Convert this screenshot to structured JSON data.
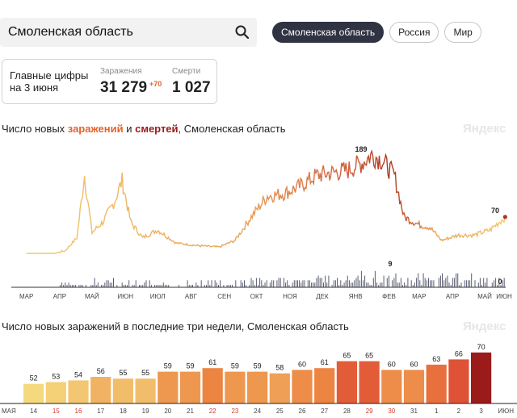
{
  "search": {
    "query": "Смоленская область",
    "icon": "search-icon"
  },
  "region_tabs": [
    {
      "label": "Смоленская область",
      "active": true
    },
    {
      "label": "Россия",
      "active": false
    },
    {
      "label": "Мир",
      "active": false
    }
  ],
  "summary": {
    "label_line1": "Главные цифры",
    "label_line2": "на 3 июня",
    "cases_caption": "Заражения",
    "cases_value": "31 279",
    "cases_delta": "+70",
    "deaths_caption": "Смерти",
    "deaths_value": "1 027"
  },
  "brand": {
    "logo_text": "Яндекс"
  },
  "colors": {
    "accent_orange": "#e4622c",
    "deaths_dark": "#9b1a1a",
    "line_start": "#f2c96b",
    "line_peak": "#a8361f",
    "bars_gray": "#5a5d72"
  },
  "chart_data": [
    {
      "type": "line",
      "title_parts": [
        "Число новых ",
        "заражений",
        " и ",
        "смертей",
        ", Смоленская область"
      ],
      "x_ticks": [
        "МАР",
        "АПР",
        "МАЙ",
        "ИЮН",
        "ИЮЛ",
        "АВГ",
        "СЕН",
        "ОКТ",
        "НОЯ",
        "ДЕК",
        "ЯНВ",
        "ФЕВ",
        "МАР",
        "АПР",
        "МАЙ",
        "ИЮН"
      ],
      "annotations": {
        "peak_cases": "189",
        "last_cases": "70",
        "peak_deaths": "9",
        "last_deaths": "0"
      },
      "cases_keypoints": [
        [
          "2020-03-15",
          0
        ],
        [
          "2020-04-10",
          0
        ],
        [
          "2020-04-20",
          5
        ],
        [
          "2020-05-01",
          30
        ],
        [
          "2020-05-08",
          150
        ],
        [
          "2020-05-15",
          40
        ],
        [
          "2020-05-25",
          60
        ],
        [
          "2020-06-05",
          100
        ],
        [
          "2020-06-12",
          140
        ],
        [
          "2020-06-20",
          60
        ],
        [
          "2020-07-01",
          30
        ],
        [
          "2020-07-15",
          45
        ],
        [
          "2020-08-01",
          20
        ],
        [
          "2020-08-20",
          15
        ],
        [
          "2020-09-10",
          12
        ],
        [
          "2020-09-25",
          25
        ],
        [
          "2020-10-10",
          70
        ],
        [
          "2020-10-25",
          110
        ],
        [
          "2020-11-10",
          115
        ],
        [
          "2020-11-25",
          130
        ],
        [
          "2020-12-10",
          150
        ],
        [
          "2020-12-25",
          155
        ],
        [
          "2021-01-08",
          160
        ],
        [
          "2021-01-22",
          175
        ],
        [
          "2021-01-30",
          189
        ],
        [
          "2021-02-08",
          180
        ],
        [
          "2021-02-20",
          150
        ],
        [
          "2021-03-01",
          70
        ],
        [
          "2021-03-15",
          55
        ],
        [
          "2021-03-25",
          50
        ],
        [
          "2021-04-05",
          25
        ],
        [
          "2021-04-20",
          35
        ],
        [
          "2021-05-05",
          35
        ],
        [
          "2021-05-20",
          45
        ],
        [
          "2021-06-03",
          70
        ]
      ],
      "deaths_bars_range": {
        "start": "2020-04-15",
        "end": "2021-06-03",
        "max": 9
      }
    },
    {
      "type": "bar",
      "title": "Число новых заражений в последние три недели, Смоленская область",
      "categories": [
        "14",
        "15",
        "16",
        "17",
        "18",
        "19",
        "20",
        "21",
        "22",
        "23",
        "24",
        "25",
        "26",
        "27",
        "28",
        "29",
        "30",
        "31",
        "1",
        "2",
        "3"
      ],
      "weekend_categories": [
        "15",
        "16",
        "22",
        "23",
        "29",
        "30"
      ],
      "first_month_label": "МАЯ",
      "last_month_label": "ИЮН",
      "values": [
        52,
        53,
        54,
        56,
        55,
        55,
        59,
        59,
        61,
        59,
        59,
        58,
        60,
        61,
        65,
        65,
        60,
        60,
        63,
        66,
        70
      ]
    }
  ]
}
